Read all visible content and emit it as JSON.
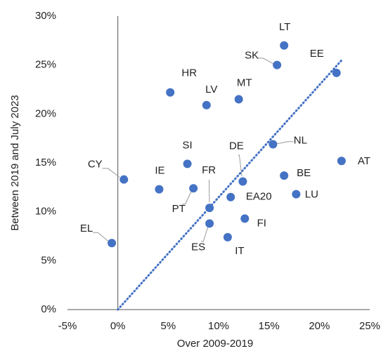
{
  "chart_data": {
    "type": "scatter",
    "xlabel": "Over 2009-2019",
    "ylabel": "Between 2019 and July 2023",
    "labels": [
      "LT",
      "SK",
      "EE",
      "HR",
      "LV",
      "MT",
      "NL",
      "AT",
      "SI",
      "DE",
      "BE",
      "CY",
      "IE",
      "PT",
      "EA20",
      "LU",
      "FR",
      "FI",
      "ES",
      "IT",
      "EL"
    ],
    "x": [
      16.5,
      15.8,
      21.7,
      5.2,
      8.8,
      12.0,
      15.4,
      22.2,
      6.9,
      12.4,
      16.5,
      0.6,
      4.1,
      7.5,
      11.2,
      17.7,
      9.1,
      12.6,
      9.1,
      10.9,
      -0.6
    ],
    "values": [
      27.0,
      25.0,
      24.2,
      22.2,
      20.9,
      21.5,
      16.9,
      15.2,
      14.9,
      13.1,
      13.7,
      13.3,
      12.3,
      12.4,
      11.5,
      11.8,
      10.4,
      9.3,
      8.8,
      7.4,
      6.8
    ],
    "color": "#4472c4",
    "trendline": {
      "x": [
        0,
        22.3
      ],
      "y": [
        0,
        25.6
      ],
      "color": "#4472c4",
      "style": "dotted"
    },
    "xlim": [
      -5,
      25
    ],
    "xticks": [
      {
        "value": -5,
        "label": "-5%"
      },
      {
        "value": 0,
        "label": "0%"
      },
      {
        "value": 5,
        "label": "5%"
      },
      {
        "value": 10,
        "label": "10%"
      },
      {
        "value": 15,
        "label": "15%"
      },
      {
        "value": 20,
        "label": "20%"
      },
      {
        "value": 25,
        "label": "25%"
      }
    ],
    "ylim": [
      0,
      30
    ],
    "yticks": [
      {
        "value": 0,
        "label": "0%"
      },
      {
        "value": 5,
        "label": "5%"
      },
      {
        "value": 10,
        "label": "10%"
      },
      {
        "value": 15,
        "label": "15%"
      },
      {
        "value": 20,
        "label": "20%"
      },
      {
        "value": 25,
        "label": "25%"
      },
      {
        "value": 30,
        "label": "30%"
      }
    ],
    "grid": false
  }
}
